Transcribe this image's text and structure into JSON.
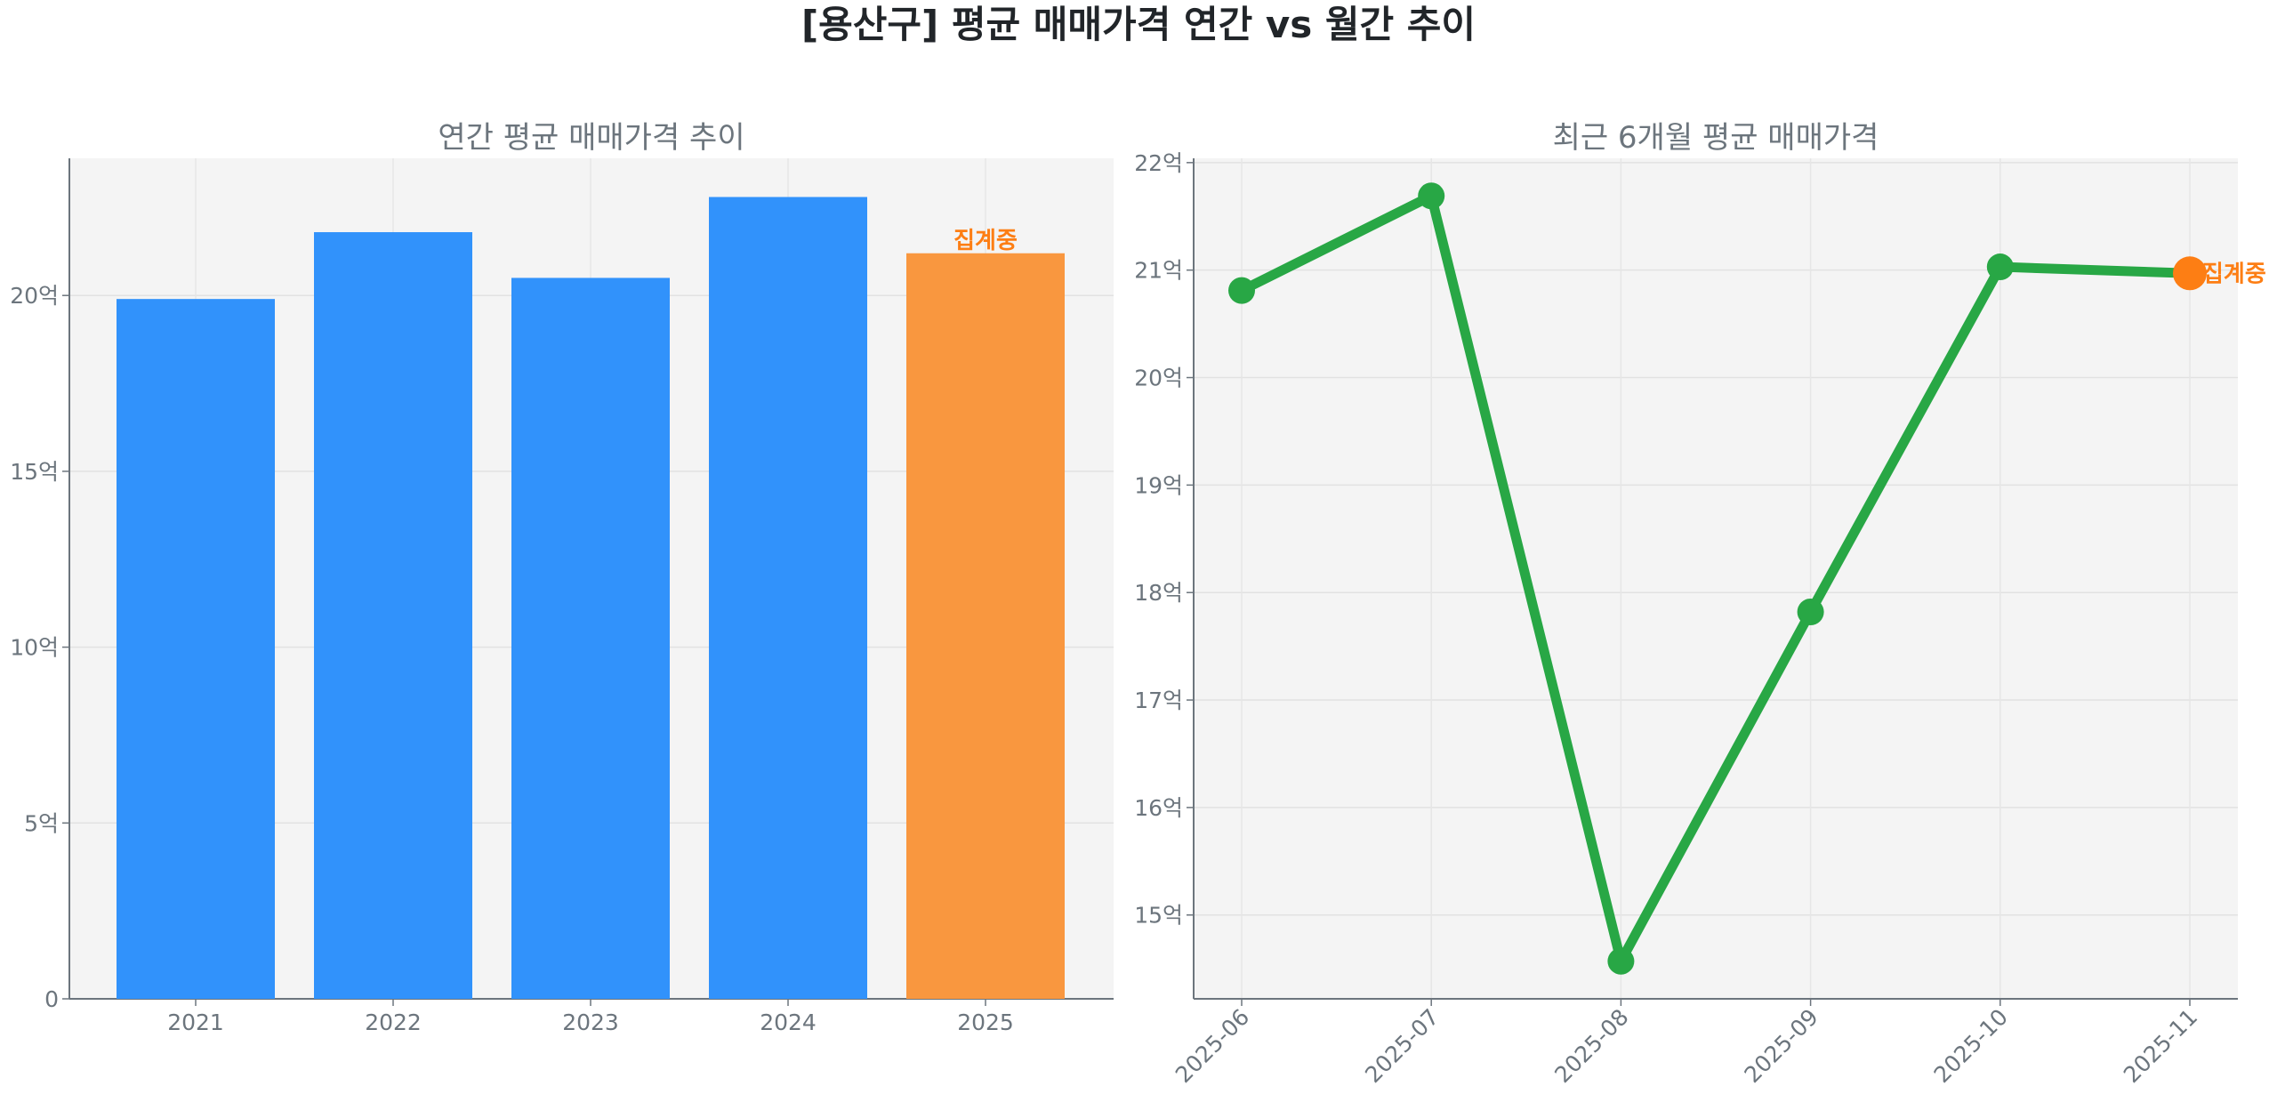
{
  "title": "[용산구] 평균 매매가격 연간 vs 월간 추이",
  "colors": {
    "bar": "#3192fb",
    "bar_partial": "#f9973f",
    "line": "#28a745",
    "partial_marker": "#fd7e14",
    "partial_text": "#fd7e14",
    "axis_text": "#6c757d",
    "title": "#212529",
    "plot_bg": "#f4f4f4"
  },
  "chart_data": [
    {
      "type": "bar",
      "title": "연간 평균 매매가격 추이",
      "categories": [
        "2021",
        "2022",
        "2023",
        "2024",
        "2025"
      ],
      "values": [
        19.9,
        21.8,
        20.5,
        22.8,
        21.2
      ],
      "partial": [
        false,
        false,
        false,
        false,
        true
      ],
      "annotation": "집계중",
      "ylim": [
        0,
        23.9
      ],
      "yticks": [
        0,
        5,
        10,
        15,
        20
      ],
      "ytick_labels": [
        "0",
        "5억",
        "10억",
        "15억",
        "20억"
      ],
      "grid": true
    },
    {
      "type": "line",
      "title": "최근 6개월 평균 매매가격",
      "categories": [
        "2025-06",
        "2025-07",
        "2025-08",
        "2025-09",
        "2025-10",
        "2025-11"
      ],
      "values": [
        20.81,
        21.69,
        14.57,
        17.82,
        21.03,
        20.97
      ],
      "partial": [
        false,
        false,
        false,
        false,
        false,
        true
      ],
      "annotation": "집계중",
      "ylim": [
        14.22,
        22.04
      ],
      "yticks": [
        15,
        16,
        17,
        18,
        19,
        20,
        21,
        22
      ],
      "ytick_labels": [
        "15억",
        "16억",
        "17억",
        "18억",
        "19억",
        "20억",
        "21억",
        "22억"
      ],
      "grid": true
    }
  ]
}
